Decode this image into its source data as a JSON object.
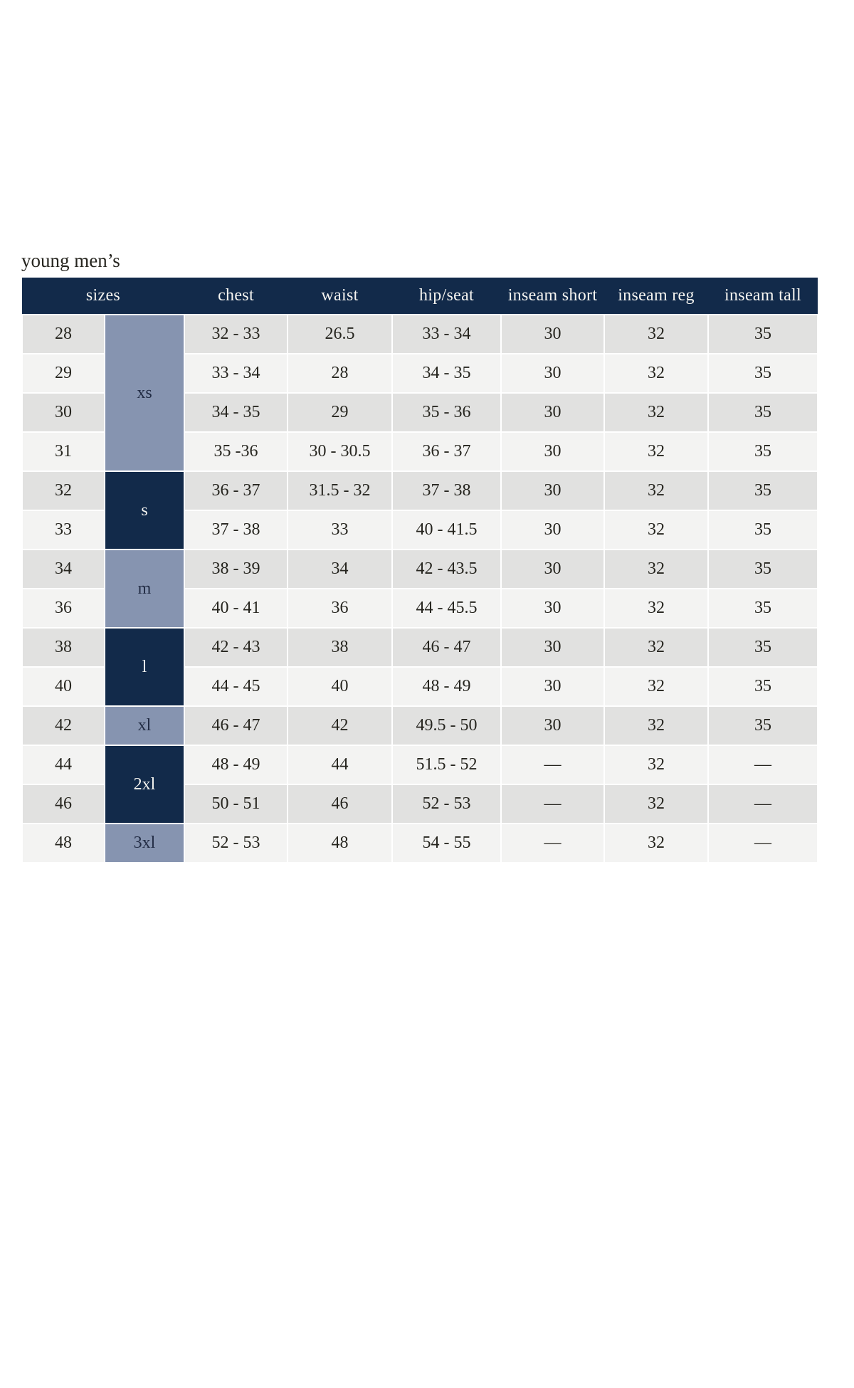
{
  "page": {
    "title": "young men’s"
  },
  "table": {
    "headers": {
      "sizes": "sizes",
      "chest": "chest",
      "waist": "waist",
      "hip_seat": "hip/seat",
      "inseam_short": "inseam short",
      "inseam_reg": "inseam reg",
      "inseam_tall": "inseam tall"
    },
    "groups": [
      {
        "label": "xs",
        "rows": 4,
        "tone": "light"
      },
      {
        "label": "s",
        "rows": 2,
        "tone": "dark"
      },
      {
        "label": "m",
        "rows": 2,
        "tone": "light"
      },
      {
        "label": "l",
        "rows": 2,
        "tone": "dark"
      },
      {
        "label": "xl",
        "rows": 1,
        "tone": "light"
      },
      {
        "label": "2xl",
        "rows": 2,
        "tone": "dark"
      },
      {
        "label": "3xl",
        "rows": 1,
        "tone": "light"
      }
    ],
    "rows": [
      {
        "size": "28",
        "chest": "32 - 33",
        "waist": "26.5",
        "hip": "33 - 34",
        "inseam_short": "30",
        "inseam_reg": "32",
        "inseam_tall": "35"
      },
      {
        "size": "29",
        "chest": "33 - 34",
        "waist": "28",
        "hip": "34 - 35",
        "inseam_short": "30",
        "inseam_reg": "32",
        "inseam_tall": "35"
      },
      {
        "size": "30",
        "chest": "34 - 35",
        "waist": "29",
        "hip": "35 - 36",
        "inseam_short": "30",
        "inseam_reg": "32",
        "inseam_tall": "35"
      },
      {
        "size": "31",
        "chest": "35 -36",
        "waist": "30 - 30.5",
        "hip": "36 - 37",
        "inseam_short": "30",
        "inseam_reg": "32",
        "inseam_tall": "35"
      },
      {
        "size": "32",
        "chest": "36 - 37",
        "waist": "31.5 - 32",
        "hip": "37 - 38",
        "inseam_short": "30",
        "inseam_reg": "32",
        "inseam_tall": "35"
      },
      {
        "size": "33",
        "chest": "37 - 38",
        "waist": "33",
        "hip": "40 - 41.5",
        "inseam_short": "30",
        "inseam_reg": "32",
        "inseam_tall": "35"
      },
      {
        "size": "34",
        "chest": "38 - 39",
        "waist": "34",
        "hip": "42 - 43.5",
        "inseam_short": "30",
        "inseam_reg": "32",
        "inseam_tall": "35"
      },
      {
        "size": "36",
        "chest": "40 - 41",
        "waist": "36",
        "hip": "44 - 45.5",
        "inseam_short": "30",
        "inseam_reg": "32",
        "inseam_tall": "35"
      },
      {
        "size": "38",
        "chest": "42 - 43",
        "waist": "38",
        "hip": "46 - 47",
        "inseam_short": "30",
        "inseam_reg": "32",
        "inseam_tall": "35"
      },
      {
        "size": "40",
        "chest": "44 - 45",
        "waist": "40",
        "hip": "48 - 49",
        "inseam_short": "30",
        "inseam_reg": "32",
        "inseam_tall": "35"
      },
      {
        "size": "42",
        "chest": "46 - 47",
        "waist": "42",
        "hip": "49.5 - 50",
        "inseam_short": "30",
        "inseam_reg": "32",
        "inseam_tall": "35"
      },
      {
        "size": "44",
        "chest": "48 - 49",
        "waist": "44",
        "hip": "51.5 - 52",
        "inseam_short": "—",
        "inseam_reg": "32",
        "inseam_tall": "—"
      },
      {
        "size": "46",
        "chest": "50 - 51",
        "waist": "46",
        "hip": "52 - 53",
        "inseam_short": "—",
        "inseam_reg": "32",
        "inseam_tall": "—"
      },
      {
        "size": "48",
        "chest": "52 - 53",
        "waist": "48",
        "hip": "54 - 55",
        "inseam_short": "—",
        "inseam_reg": "32",
        "inseam_tall": "—"
      }
    ]
  },
  "colors": {
    "header_bg": "#122a4a",
    "group_dark": "#122a4a",
    "group_light": "#8694b0",
    "row_dark": "#e1e1e0",
    "row_light": "#f3f3f2",
    "header_text": "#f6f5f1",
    "body_text": "#26251f",
    "group_light_text": "#222c44"
  }
}
